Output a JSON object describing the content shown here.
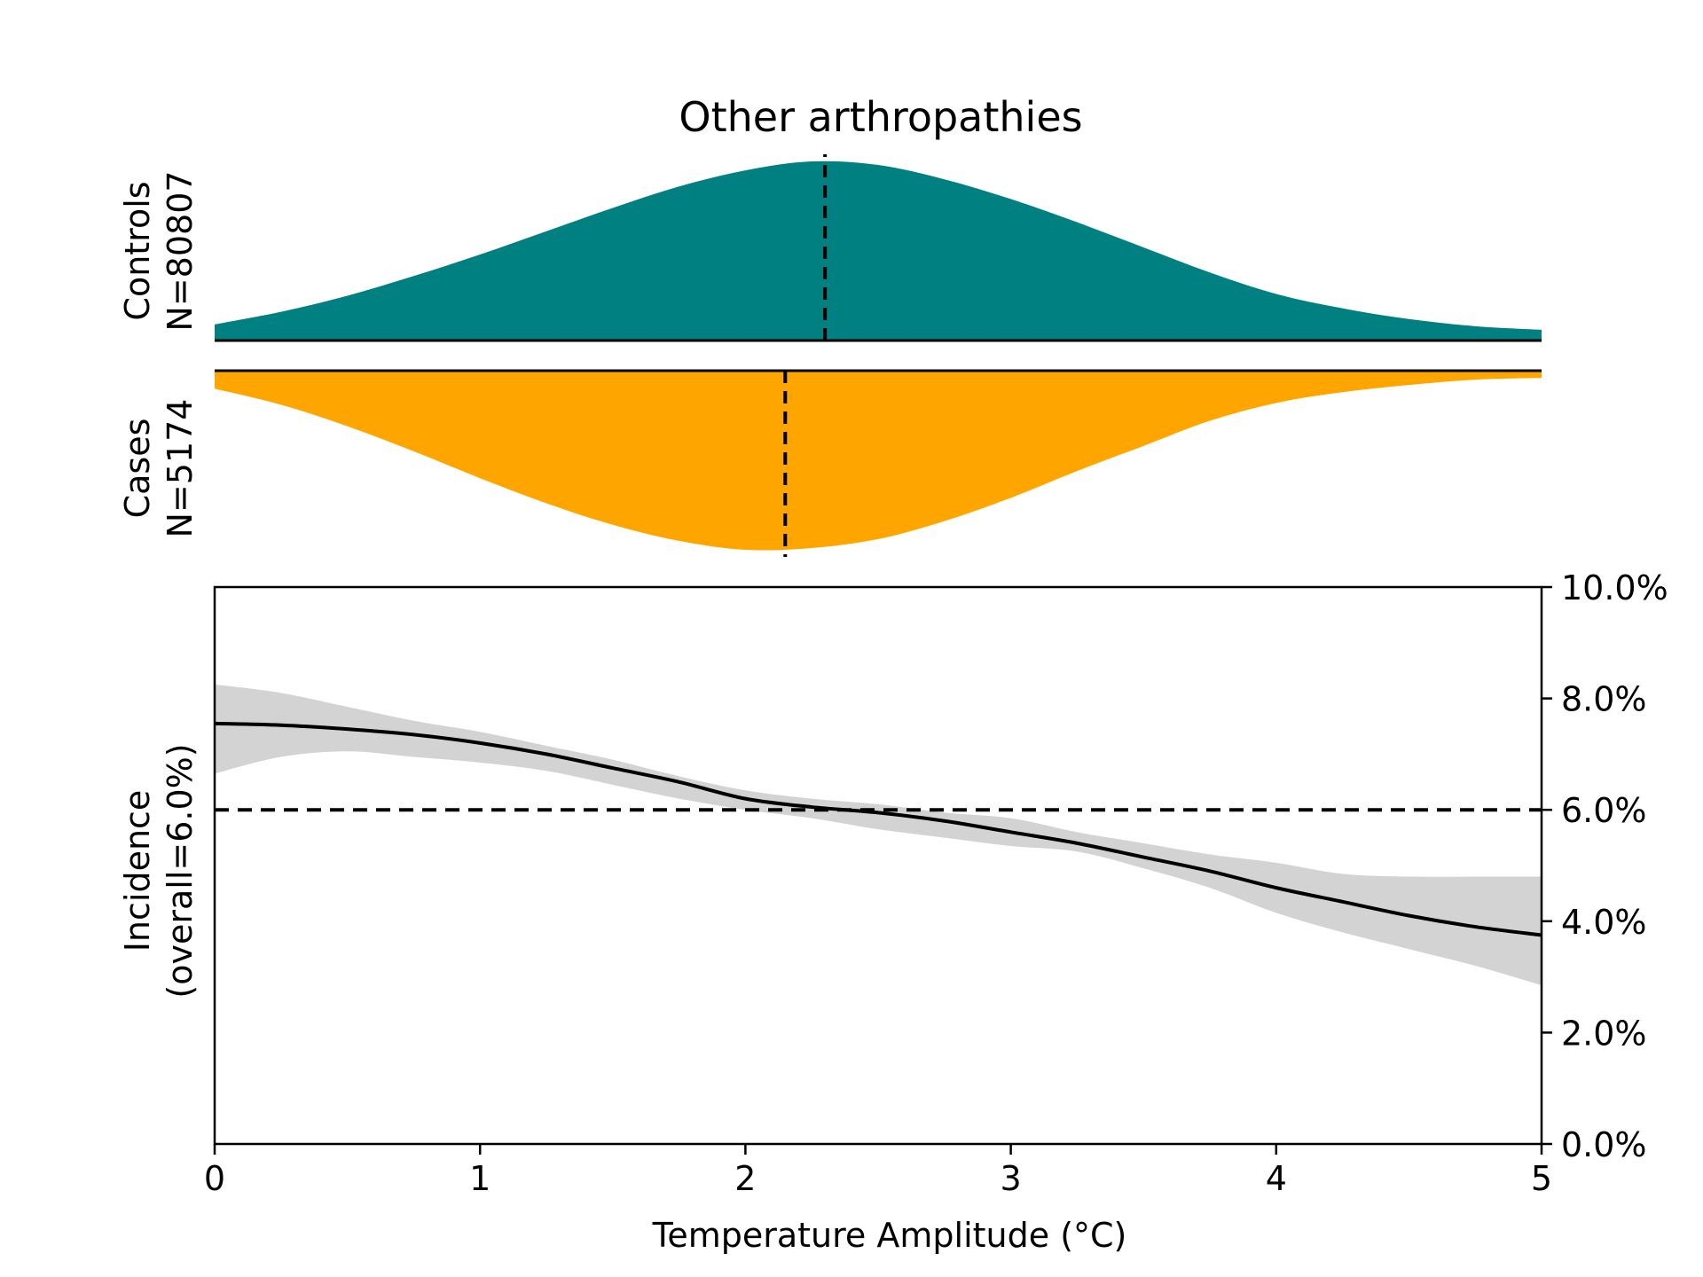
{
  "chart_data": [
    {
      "type": "area",
      "panel": "controls-density",
      "title": "Other arthropathies",
      "ylabel_lines": [
        "Controls",
        "N=80807"
      ],
      "color": "#008080",
      "mean_line": 2.3,
      "x": [
        0,
        0.25,
        0.5,
        0.75,
        1.0,
        1.25,
        1.5,
        1.75,
        2.0,
        2.25,
        2.5,
        2.75,
        3.0,
        3.25,
        3.5,
        3.75,
        4.0,
        4.25,
        4.5,
        4.75,
        5.0
      ],
      "values": [
        0.09,
        0.16,
        0.25,
        0.36,
        0.48,
        0.61,
        0.74,
        0.86,
        0.95,
        1.0,
        0.98,
        0.9,
        0.79,
        0.66,
        0.52,
        0.38,
        0.26,
        0.18,
        0.12,
        0.08,
        0.06
      ]
    },
    {
      "type": "area",
      "panel": "cases-density",
      "ylabel_lines": [
        "Cases",
        "N=5174"
      ],
      "color": "#FFA500",
      "mean_line": 2.15,
      "x": [
        0,
        0.25,
        0.5,
        0.75,
        1.0,
        1.25,
        1.5,
        1.75,
        2.0,
        2.25,
        2.5,
        2.75,
        3.0,
        3.25,
        3.5,
        3.75,
        4.0,
        4.25,
        4.5,
        4.75,
        5.0
      ],
      "values": [
        0.1,
        0.19,
        0.31,
        0.45,
        0.6,
        0.74,
        0.86,
        0.95,
        1.0,
        0.99,
        0.94,
        0.84,
        0.71,
        0.56,
        0.42,
        0.28,
        0.18,
        0.12,
        0.08,
        0.05,
        0.04
      ]
    },
    {
      "type": "line",
      "panel": "incidence",
      "xlabel": "Temperature Amplitude (°C)",
      "ylabel_lines": [
        "Incidence",
        "(overall=6.0%)"
      ],
      "xlim": [
        0,
        5
      ],
      "ylim": [
        0,
        10
      ],
      "xticks": [
        0,
        1,
        2,
        3,
        4,
        5
      ],
      "yticks": [
        0,
        2,
        4,
        6,
        8,
        10
      ],
      "ytick_labels": [
        "0.0%",
        "2.0%",
        "4.0%",
        "6.0%",
        "8.0%",
        "10.0%"
      ],
      "reference_line": 6.0,
      "band_color": "#d3d3d3",
      "series": [
        {
          "x": [
            0,
            0.25,
            0.5,
            0.75,
            1.0,
            1.25,
            1.5,
            1.75,
            2.0,
            2.25,
            2.5,
            2.75,
            3.0,
            3.25,
            3.5,
            3.75,
            4.0,
            4.25,
            4.5,
            4.75,
            5.0
          ],
          "values": [
            7.55,
            7.52,
            7.45,
            7.35,
            7.2,
            7.0,
            6.75,
            6.5,
            6.2,
            6.05,
            5.95,
            5.8,
            5.6,
            5.4,
            5.15,
            4.9,
            4.6,
            4.35,
            4.1,
            3.9,
            3.75
          ],
          "lower": [
            6.65,
            6.95,
            7.05,
            6.95,
            6.85,
            6.7,
            6.45,
            6.2,
            6.0,
            5.85,
            5.65,
            5.5,
            5.35,
            5.25,
            4.95,
            4.6,
            4.15,
            3.8,
            3.5,
            3.2,
            2.85
          ],
          "upper": [
            8.25,
            8.1,
            7.85,
            7.6,
            7.4,
            7.15,
            6.9,
            6.6,
            6.35,
            6.2,
            6.1,
            5.95,
            5.85,
            5.6,
            5.4,
            5.2,
            5.05,
            4.85,
            4.8,
            4.8,
            4.8
          ]
        }
      ]
    }
  ]
}
